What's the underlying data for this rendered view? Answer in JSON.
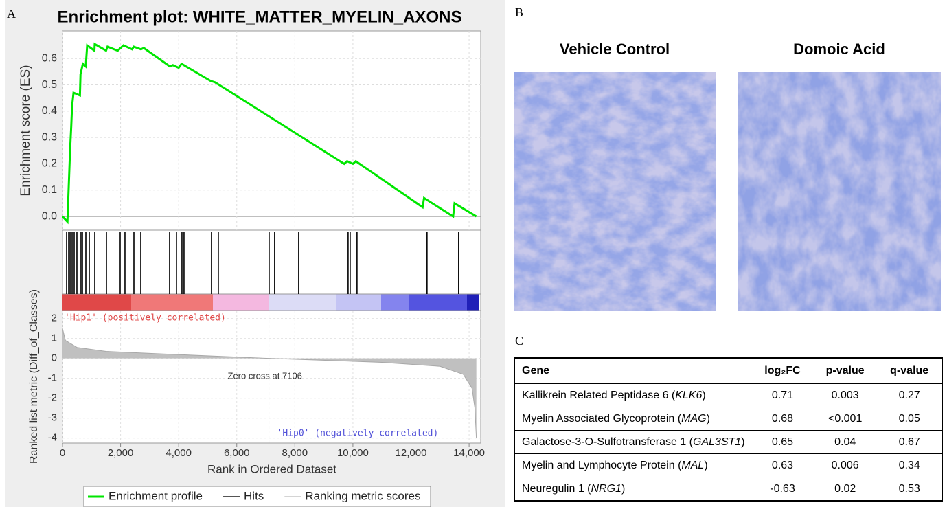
{
  "labels": {
    "a": "A",
    "b": "B",
    "c": "C"
  },
  "chart_data": [
    {
      "type": "line",
      "title": "Enrichment plot: WHITE_MATTER_MYELIN_AXONS",
      "ylabel": "Enrichment score (ES)",
      "xlim": [
        0,
        14400
      ],
      "ylim": [
        -0.052,
        0.705
      ],
      "xticks": [
        0,
        2000,
        4000,
        6000,
        8000,
        10000,
        12000,
        14000
      ],
      "yticks": [
        {
          "value": 0,
          "label": "0.0"
        },
        0.1,
        0.2,
        0.3,
        0.4,
        0.5,
        0.6
      ],
      "grid": true,
      "series": [
        {
          "name": "Enrichment profile",
          "color": "#00e600",
          "x": [
            0,
            170,
            220,
            260,
            300,
            330,
            380,
            600,
            620,
            700,
            800,
            850,
            1100,
            1110,
            1500,
            1550,
            1900,
            2100,
            2400,
            2450,
            2700,
            2800,
            3700,
            3800,
            4000,
            4100,
            5100,
            5250,
            9700,
            9800,
            10000,
            10100,
            12400,
            12450,
            13450,
            13500,
            14250
          ],
          "values": [
            0,
            -0.02,
            0.13,
            0.25,
            0.34,
            0.42,
            0.47,
            0.46,
            0.54,
            0.58,
            0.57,
            0.65,
            0.63,
            0.655,
            0.63,
            0.645,
            0.63,
            0.65,
            0.635,
            0.645,
            0.635,
            0.64,
            0.57,
            0.575,
            0.565,
            0.58,
            0.515,
            0.51,
            0.2,
            0.21,
            0.2,
            0.21,
            0.035,
            0.07,
            0,
            0.05,
            0
          ]
        }
      ]
    },
    {
      "type": "rug",
      "xlim": [
        0,
        14400
      ],
      "series": [
        {
          "name": "Hits",
          "color": "#000000",
          "x": [
            142,
            213,
            260,
            307,
            355,
            402,
            496,
            638,
            686,
            804,
            922,
            1111,
            1513,
            1986,
            2151,
            2459,
            2695,
            3688,
            3924,
            4113,
            4184,
            5130,
            5366,
            7115,
            7304,
            8132,
            9834,
            9905,
            10141,
            12552,
            13640
          ]
        }
      ]
    },
    {
      "type": "area",
      "ylabel": "Ranked list metric (Diff_of_Classes)",
      "xlabel": "Rank in Ordered Dataset",
      "xlim": [
        0,
        14400
      ],
      "ylim": [
        -4.25,
        2.4
      ],
      "xticks": [
        0,
        {
          "value": 2000,
          "label": "2,000"
        },
        {
          "value": 4000,
          "label": "4,000"
        },
        {
          "value": 6000,
          "label": "6,000"
        },
        {
          "value": 8000,
          "label": "8,000"
        },
        {
          "value": 10000,
          "label": "10,000"
        },
        {
          "value": 12000,
          "label": "12,000"
        },
        {
          "value": 14000,
          "label": "14,000"
        }
      ],
      "yticks": [
        -4,
        -3,
        -2,
        -1,
        0,
        1,
        2
      ],
      "grid": true,
      "series": [
        {
          "name": "Ranking metric scores",
          "color": "#c0c0c0",
          "x": [
            0,
            100,
            500,
            1500,
            3000,
            7106,
            11000,
            13000,
            13800,
            14100,
            14200,
            14250
          ],
          "values": [
            1.5,
            0.9,
            0.55,
            0.35,
            0.25,
            0,
            -0.2,
            -0.4,
            -0.8,
            -1.5,
            -2.5,
            -4
          ]
        }
      ],
      "zero_cross": 7106,
      "zero_cross_label": "Zero cross at 7106",
      "positive_label": "'Hip1' (positively correlated)",
      "negative_label": "'Hip0' (negatively correlated)"
    }
  ],
  "panel_b": {
    "titles": [
      "Vehicle Control",
      "Domoic Acid"
    ]
  },
  "table": {
    "header": [
      "Gene",
      "log₂FC",
      "p-value",
      "q-value"
    ],
    "rows": [
      {
        "gene": [
          "Kallikrein Related Peptidase 6 (",
          "KLK6",
          ")"
        ],
        "log2fc": 0.71,
        "p": 0.003,
        "q": 0.27
      },
      {
        "gene": [
          "Myelin Associated Glycoprotein (",
          "MAG",
          ")"
        ],
        "log2fc": 0.68,
        "p": "<0.001",
        "q": 0.05
      },
      {
        "gene": [
          "Galactose-3-O-Sulfotransferase 1 (",
          "GAL3ST1",
          ")"
        ],
        "log2fc": 0.65,
        "p": 0.04,
        "q": 0.67
      },
      {
        "gene": [
          "Myelin and Lymphocyte Protein (",
          "MAL",
          ")"
        ],
        "log2fc": 0.63,
        "p": 0.006,
        "q": 0.34
      },
      {
        "gene": [
          "Neuregulin 1 (",
          "NRG1",
          ")"
        ],
        "log2fc": -0.63,
        "p": 0.02,
        "q": 0.53
      }
    ]
  }
}
